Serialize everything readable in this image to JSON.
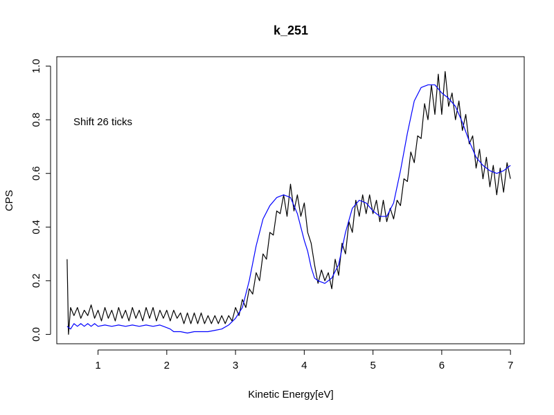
{
  "chart_data": {
    "type": "line",
    "title": "k_251",
    "xlabel": "Kinetic Energy[eV]",
    "ylabel": "CPS",
    "annotation": "Shift 26 ticks",
    "xlim": [
      0.4,
      7.2
    ],
    "ylim": [
      -0.035,
      1.035
    ],
    "x_ticks": [
      1,
      2,
      3,
      4,
      5,
      6,
      7
    ],
    "y_ticks": [
      0.0,
      0.2,
      0.4,
      0.6,
      0.8,
      1.0
    ],
    "x_tick_labels": [
      "1",
      "2",
      "3",
      "4",
      "5",
      "6",
      "7"
    ],
    "y_tick_labels": [
      "0.0",
      "0.2",
      "0.4",
      "0.6",
      "0.8",
      "1.0"
    ],
    "grid": false,
    "colors": {
      "series_black": "#000000",
      "series_blue": "#0000ff"
    },
    "series": [
      {
        "color": "#000000",
        "points": [
          [
            0.55,
            0.28
          ],
          [
            0.57,
            0.0
          ],
          [
            0.6,
            0.1
          ],
          [
            0.65,
            0.07
          ],
          [
            0.7,
            0.1
          ],
          [
            0.75,
            0.06
          ],
          [
            0.8,
            0.09
          ],
          [
            0.85,
            0.07
          ],
          [
            0.9,
            0.11
          ],
          [
            0.95,
            0.06
          ],
          [
            1.0,
            0.09
          ],
          [
            1.05,
            0.05
          ],
          [
            1.1,
            0.1
          ],
          [
            1.15,
            0.06
          ],
          [
            1.2,
            0.09
          ],
          [
            1.25,
            0.05
          ],
          [
            1.3,
            0.1
          ],
          [
            1.35,
            0.06
          ],
          [
            1.4,
            0.09
          ],
          [
            1.45,
            0.05
          ],
          [
            1.5,
            0.1
          ],
          [
            1.55,
            0.06
          ],
          [
            1.6,
            0.09
          ],
          [
            1.65,
            0.05
          ],
          [
            1.7,
            0.1
          ],
          [
            1.75,
            0.06
          ],
          [
            1.8,
            0.1
          ],
          [
            1.85,
            0.05
          ],
          [
            1.9,
            0.09
          ],
          [
            1.95,
            0.06
          ],
          [
            2.0,
            0.09
          ],
          [
            2.05,
            0.05
          ],
          [
            2.1,
            0.09
          ],
          [
            2.15,
            0.06
          ],
          [
            2.2,
            0.08
          ],
          [
            2.25,
            0.04
          ],
          [
            2.3,
            0.08
          ],
          [
            2.35,
            0.04
          ],
          [
            2.4,
            0.08
          ],
          [
            2.45,
            0.04
          ],
          [
            2.5,
            0.08
          ],
          [
            2.55,
            0.04
          ],
          [
            2.6,
            0.07
          ],
          [
            2.65,
            0.04
          ],
          [
            2.7,
            0.07
          ],
          [
            2.75,
            0.04
          ],
          [
            2.8,
            0.07
          ],
          [
            2.85,
            0.04
          ],
          [
            2.9,
            0.07
          ],
          [
            2.95,
            0.05
          ],
          [
            3.0,
            0.1
          ],
          [
            3.05,
            0.07
          ],
          [
            3.1,
            0.13
          ],
          [
            3.15,
            0.1
          ],
          [
            3.2,
            0.17
          ],
          [
            3.25,
            0.15
          ],
          [
            3.3,
            0.23
          ],
          [
            3.35,
            0.2
          ],
          [
            3.4,
            0.3
          ],
          [
            3.45,
            0.28
          ],
          [
            3.5,
            0.38
          ],
          [
            3.55,
            0.37
          ],
          [
            3.6,
            0.46
          ],
          [
            3.65,
            0.45
          ],
          [
            3.7,
            0.52
          ],
          [
            3.75,
            0.44
          ],
          [
            3.8,
            0.56
          ],
          [
            3.85,
            0.46
          ],
          [
            3.9,
            0.52
          ],
          [
            3.95,
            0.44
          ],
          [
            4.0,
            0.49
          ],
          [
            4.05,
            0.38
          ],
          [
            4.1,
            0.34
          ],
          [
            4.15,
            0.26
          ],
          [
            4.2,
            0.19
          ],
          [
            4.25,
            0.24
          ],
          [
            4.3,
            0.2
          ],
          [
            4.35,
            0.23
          ],
          [
            4.4,
            0.17
          ],
          [
            4.45,
            0.28
          ],
          [
            4.5,
            0.22
          ],
          [
            4.55,
            0.34
          ],
          [
            4.6,
            0.3
          ],
          [
            4.65,
            0.42
          ],
          [
            4.7,
            0.38
          ],
          [
            4.75,
            0.5
          ],
          [
            4.8,
            0.44
          ],
          [
            4.85,
            0.52
          ],
          [
            4.9,
            0.45
          ],
          [
            4.95,
            0.52
          ],
          [
            5.0,
            0.45
          ],
          [
            5.05,
            0.5
          ],
          [
            5.1,
            0.42
          ],
          [
            5.15,
            0.5
          ],
          [
            5.2,
            0.42
          ],
          [
            5.25,
            0.47
          ],
          [
            5.3,
            0.43
          ],
          [
            5.35,
            0.5
          ],
          [
            5.4,
            0.48
          ],
          [
            5.45,
            0.58
          ],
          [
            5.5,
            0.57
          ],
          [
            5.55,
            0.68
          ],
          [
            5.6,
            0.64
          ],
          [
            5.65,
            0.74
          ],
          [
            5.7,
            0.73
          ],
          [
            5.75,
            0.86
          ],
          [
            5.8,
            0.8
          ],
          [
            5.85,
            0.93
          ],
          [
            5.9,
            0.82
          ],
          [
            5.95,
            0.97
          ],
          [
            6.0,
            0.82
          ],
          [
            6.05,
            0.98
          ],
          [
            6.1,
            0.85
          ],
          [
            6.15,
            0.9
          ],
          [
            6.2,
            0.8
          ],
          [
            6.25,
            0.87
          ],
          [
            6.3,
            0.76
          ],
          [
            6.35,
            0.82
          ],
          [
            6.4,
            0.71
          ],
          [
            6.45,
            0.74
          ],
          [
            6.5,
            0.62
          ],
          [
            6.55,
            0.69
          ],
          [
            6.6,
            0.58
          ],
          [
            6.65,
            0.66
          ],
          [
            6.7,
            0.55
          ],
          [
            6.75,
            0.63
          ],
          [
            6.8,
            0.52
          ],
          [
            6.85,
            0.62
          ],
          [
            6.9,
            0.53
          ],
          [
            6.95,
            0.64
          ],
          [
            7.0,
            0.58
          ]
        ]
      },
      {
        "color": "#0000ff",
        "points": [
          [
            0.55,
            0.03
          ],
          [
            0.6,
            0.02
          ],
          [
            0.65,
            0.04
          ],
          [
            0.7,
            0.03
          ],
          [
            0.75,
            0.04
          ],
          [
            0.8,
            0.03
          ],
          [
            0.85,
            0.04
          ],
          [
            0.9,
            0.03
          ],
          [
            0.95,
            0.04
          ],
          [
            1.0,
            0.03
          ],
          [
            1.1,
            0.035
          ],
          [
            1.2,
            0.03
          ],
          [
            1.3,
            0.035
          ],
          [
            1.4,
            0.03
          ],
          [
            1.5,
            0.035
          ],
          [
            1.6,
            0.03
          ],
          [
            1.7,
            0.035
          ],
          [
            1.8,
            0.03
          ],
          [
            1.9,
            0.035
          ],
          [
            2.0,
            0.025
          ],
          [
            2.05,
            0.02
          ],
          [
            2.1,
            0.01
          ],
          [
            2.2,
            0.01
          ],
          [
            2.3,
            0.005
          ],
          [
            2.4,
            0.01
          ],
          [
            2.5,
            0.01
          ],
          [
            2.6,
            0.01
          ],
          [
            2.7,
            0.015
          ],
          [
            2.8,
            0.02
          ],
          [
            2.9,
            0.035
          ],
          [
            3.0,
            0.06
          ],
          [
            3.1,
            0.1
          ],
          [
            3.2,
            0.2
          ],
          [
            3.3,
            0.33
          ],
          [
            3.4,
            0.43
          ],
          [
            3.5,
            0.48
          ],
          [
            3.6,
            0.51
          ],
          [
            3.7,
            0.52
          ],
          [
            3.8,
            0.51
          ],
          [
            3.85,
            0.48
          ],
          [
            3.9,
            0.45
          ],
          [
            4.0,
            0.35
          ],
          [
            4.05,
            0.31
          ],
          [
            4.1,
            0.25
          ],
          [
            4.15,
            0.21
          ],
          [
            4.2,
            0.2
          ],
          [
            4.3,
            0.19
          ],
          [
            4.4,
            0.21
          ],
          [
            4.5,
            0.26
          ],
          [
            4.6,
            0.38
          ],
          [
            4.7,
            0.47
          ],
          [
            4.8,
            0.5
          ],
          [
            4.9,
            0.49
          ],
          [
            5.0,
            0.46
          ],
          [
            5.1,
            0.44
          ],
          [
            5.2,
            0.44
          ],
          [
            5.3,
            0.49
          ],
          [
            5.4,
            0.61
          ],
          [
            5.5,
            0.75
          ],
          [
            5.6,
            0.87
          ],
          [
            5.7,
            0.92
          ],
          [
            5.8,
            0.93
          ],
          [
            5.9,
            0.93
          ],
          [
            6.0,
            0.9
          ],
          [
            6.1,
            0.88
          ],
          [
            6.2,
            0.85
          ],
          [
            6.3,
            0.79
          ],
          [
            6.4,
            0.72
          ],
          [
            6.5,
            0.66
          ],
          [
            6.6,
            0.63
          ],
          [
            6.7,
            0.61
          ],
          [
            6.8,
            0.6
          ],
          [
            6.9,
            0.61
          ],
          [
            7.0,
            0.63
          ]
        ]
      }
    ]
  }
}
